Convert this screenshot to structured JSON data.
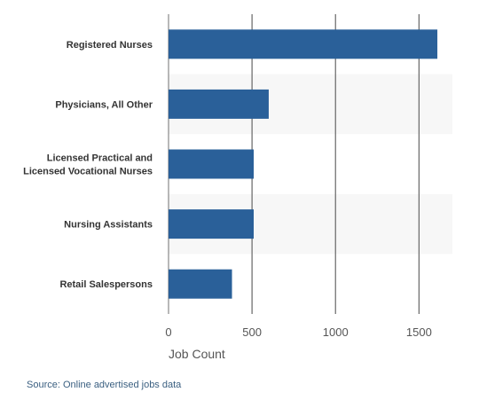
{
  "chart_data": {
    "type": "bar",
    "orientation": "horizontal",
    "categories": [
      [
        "Registered Nurses"
      ],
      [
        "Physicians, All Other"
      ],
      [
        "Licensed Practical and",
        "Licensed Vocational Nurses"
      ],
      [
        "Nursing Assistants"
      ],
      [
        "Retail Salespersons"
      ]
    ],
    "values": [
      1610,
      600,
      510,
      510,
      380
    ],
    "xlabel": "Job Count",
    "xlim": [
      0,
      1700
    ],
    "xticks": [
      0,
      500,
      1000,
      1500
    ],
    "grid": "vertical",
    "bar_color": "#2a6099",
    "band_color": "#f7f7f7"
  },
  "source": "Source: Online advertised jobs data"
}
